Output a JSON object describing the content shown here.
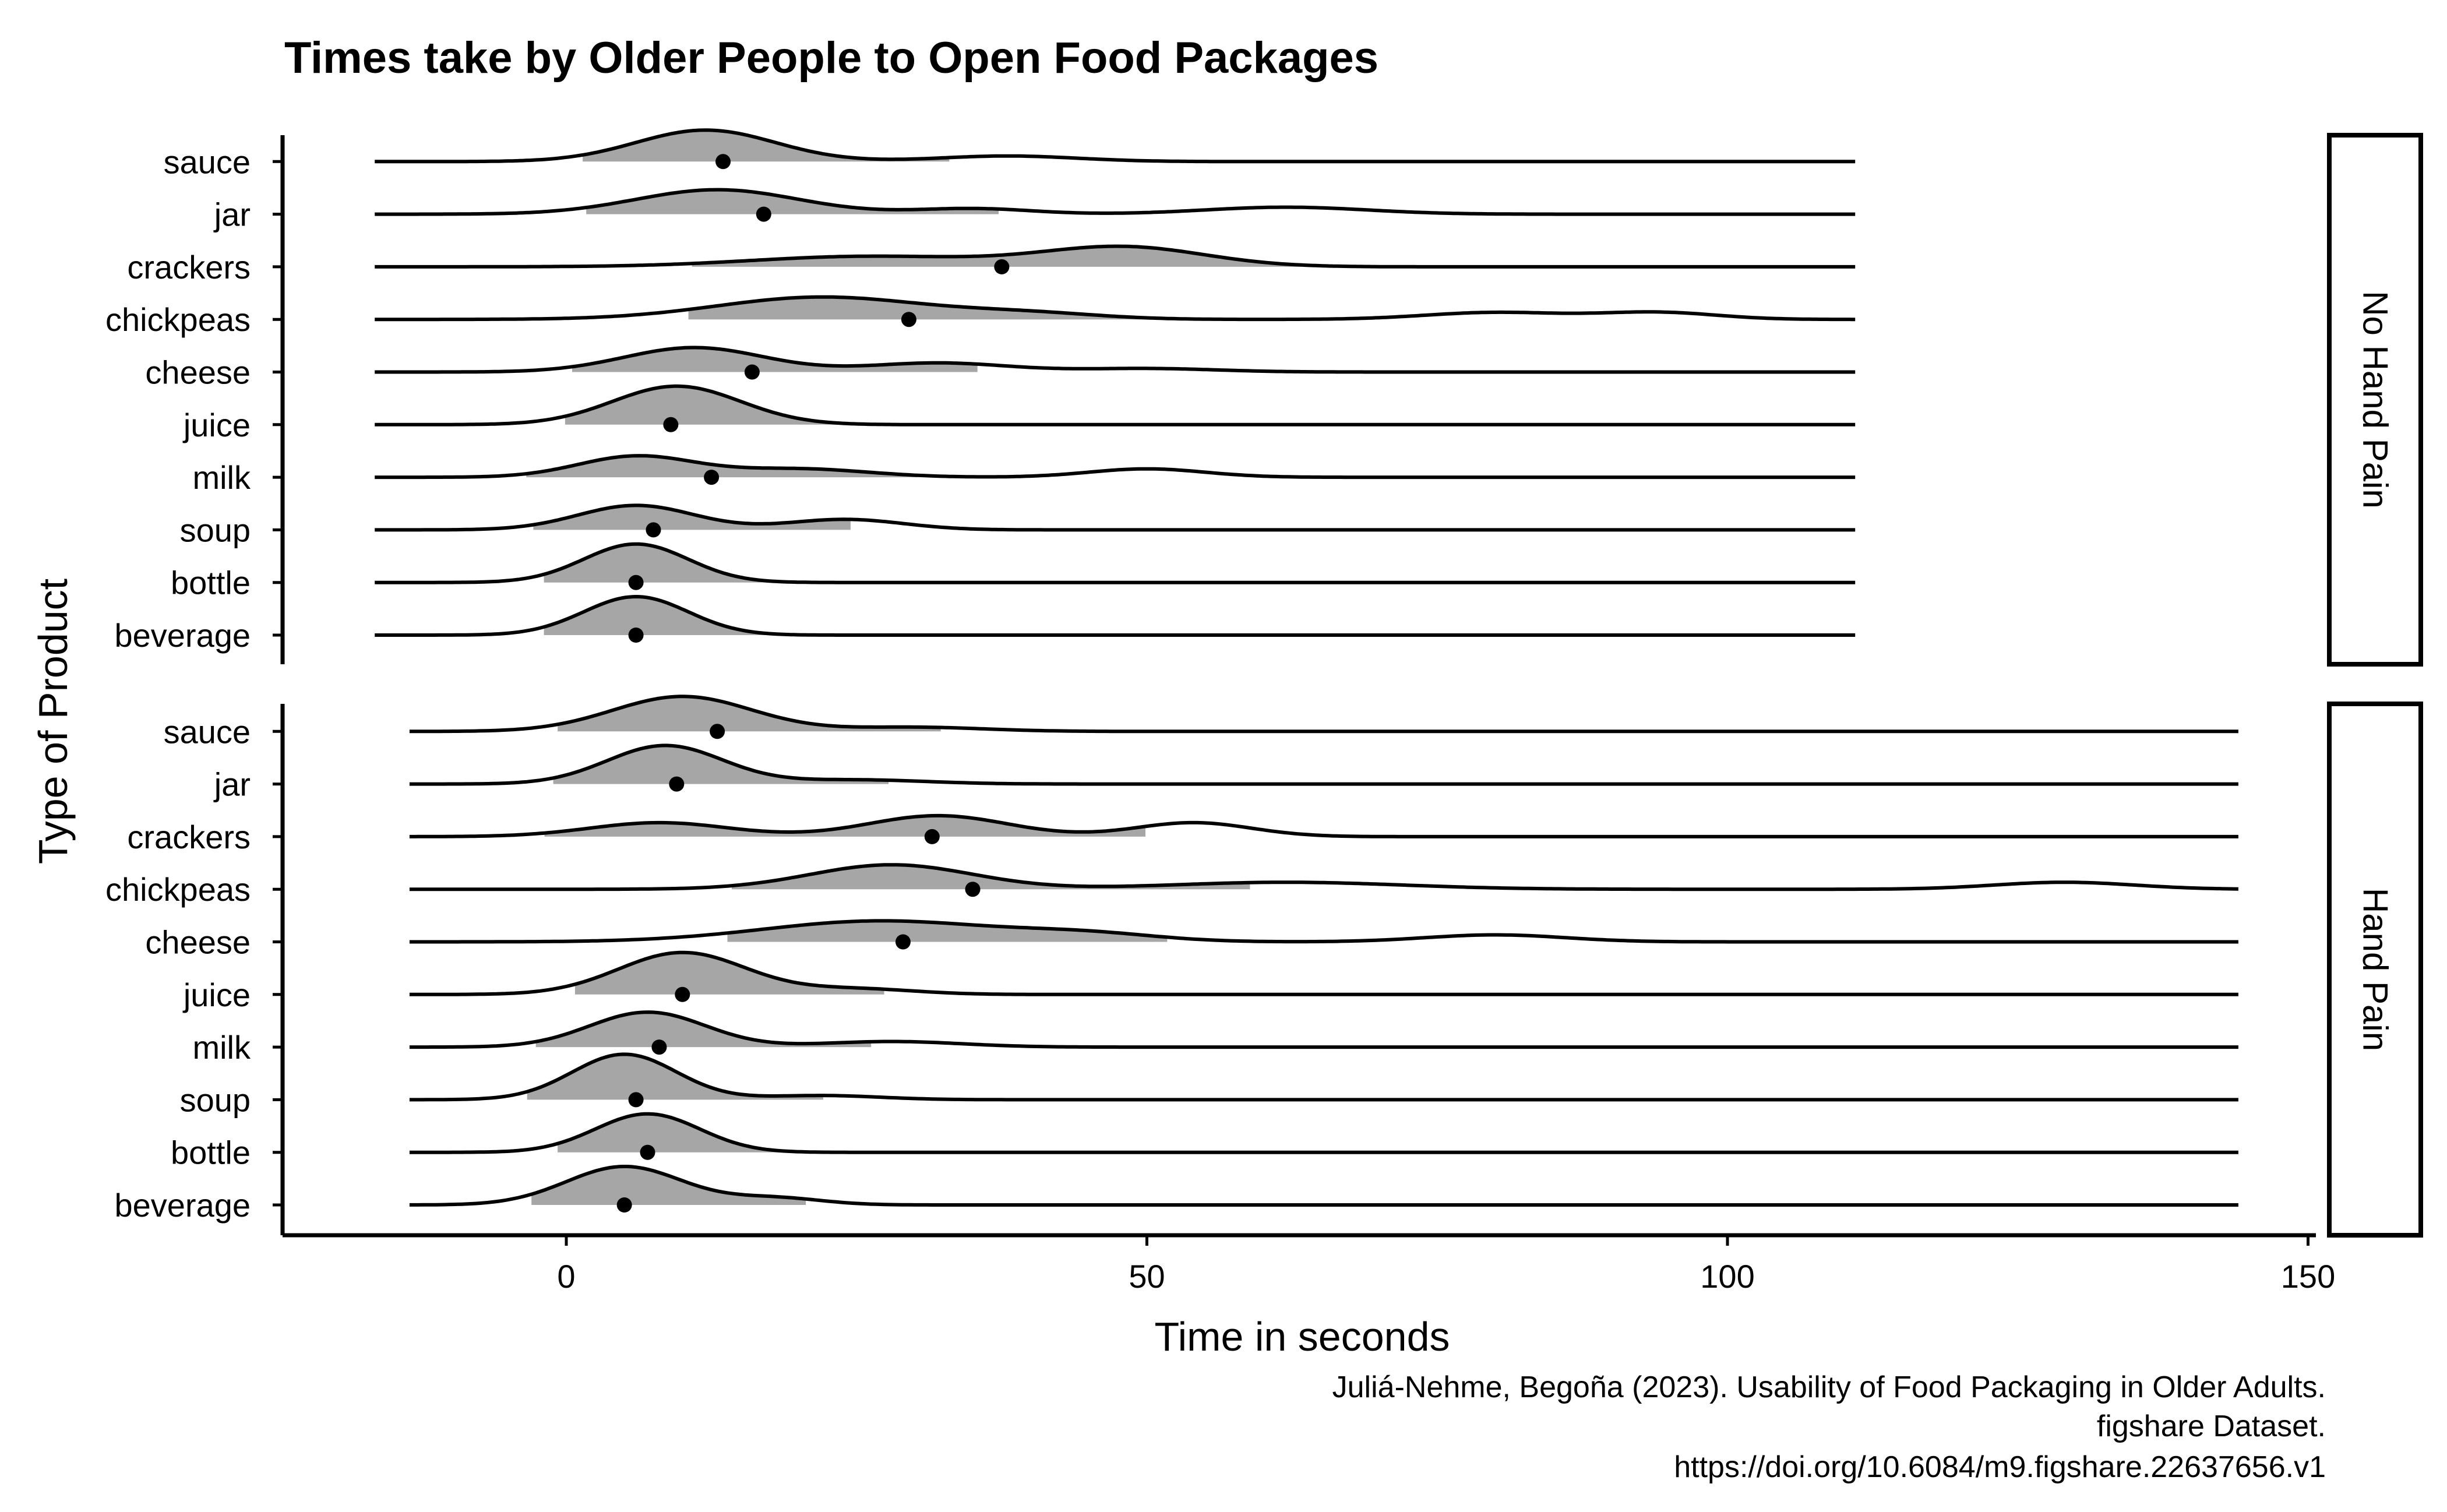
{
  "chart_data": {
    "type": "ridgeline",
    "title": "Times take by Older People to Open Food Packages",
    "xlabel": "Time in seconds",
    "ylabel": "Type of Product",
    "xlim": [
      -25,
      152
    ],
    "x_ticks": [
      0,
      50,
      100,
      150
    ],
    "grid": false,
    "categories": [
      "beverage",
      "bottle",
      "soup",
      "milk",
      "juice",
      "cheese",
      "chickpeas",
      "crackers",
      "jar",
      "sauce"
    ],
    "fill_color": "#a6a6a6",
    "line_color": "#000000",
    "point_color": "#000000",
    "caption": [
      "Juliá-Nehme, Begoña (2023). Usability of Food Packaging in Older Adults.",
      "figshare Dataset.",
      "https://doi.org/10.6084/m9.figshare.22637656.v1"
    ],
    "panels": [
      {
        "strip_label": "No Hand Pain",
        "x_range": [
          -16.5,
          111
        ],
        "ridges": [
          {
            "category": "beverage",
            "point": 6,
            "peaks": [
              [
                6,
                4.5,
                0.55
              ]
            ]
          },
          {
            "category": "bottle",
            "point": 6,
            "peaks": [
              [
                6,
                4.5,
                0.55
              ]
            ]
          },
          {
            "category": "soup",
            "point": 7.5,
            "peaks": [
              [
                6,
                5,
                0.35
              ],
              [
                24,
                5,
                0.15
              ]
            ]
          },
          {
            "category": "milk",
            "point": 12.5,
            "peaks": [
              [
                6,
                5,
                0.3
              ],
              [
                20,
                6,
                0.12
              ],
              [
                50,
                5,
                0.12
              ]
            ]
          },
          {
            "category": "juice",
            "point": 9,
            "peaks": [
              [
                9.5,
                5.5,
                0.55
              ]
            ]
          },
          {
            "category": "cheese",
            "point": 16,
            "peaks": [
              [
                11,
                6,
                0.35
              ],
              [
                32,
                6,
                0.13
              ],
              [
                50,
                6,
                0.05
              ]
            ]
          },
          {
            "category": "chickpeas",
            "point": 29.5,
            "peaks": [
              [
                22,
                9,
                0.32
              ],
              [
                40,
                6,
                0.08
              ],
              [
                80,
                6,
                0.1
              ],
              [
                94,
                5,
                0.1
              ]
            ]
          },
          {
            "category": "crackers",
            "point": 37.5,
            "peaks": [
              [
                26,
                10,
                0.15
              ],
              [
                48,
                7,
                0.28
              ]
            ]
          },
          {
            "category": "jar",
            "point": 17,
            "peaks": [
              [
                13,
                7,
                0.35
              ],
              [
                35,
                5,
                0.08
              ],
              [
                62,
                7,
                0.1
              ]
            ]
          },
          {
            "category": "sauce",
            "point": 13.5,
            "peaks": [
              [
                12,
                6,
                0.45
              ],
              [
                38,
                6,
                0.08
              ]
            ]
          }
        ]
      },
      {
        "strip_label": "Hand Pain",
        "x_range": [
          -13.5,
          144
        ],
        "ridges": [
          {
            "category": "beverage",
            "point": 5,
            "peaks": [
              [
                5,
                5,
                0.55
              ],
              [
                18,
                4,
                0.1
              ]
            ]
          },
          {
            "category": "bottle",
            "point": 7,
            "peaks": [
              [
                7,
                4.5,
                0.55
              ]
            ]
          },
          {
            "category": "soup",
            "point": 6,
            "peaks": [
              [
                5,
                4.5,
                0.65
              ],
              [
                22,
                5,
                0.06
              ]
            ]
          },
          {
            "category": "milk",
            "point": 8,
            "peaks": [
              [
                7,
                5,
                0.5
              ],
              [
                28,
                6,
                0.08
              ]
            ]
          },
          {
            "category": "juice",
            "point": 10,
            "peaks": [
              [
                10,
                5.5,
                0.6
              ],
              [
                25,
                5,
                0.08
              ]
            ]
          },
          {
            "category": "cheese",
            "point": 29,
            "peaks": [
              [
                27,
                10,
                0.3
              ],
              [
                45,
                6,
                0.1
              ],
              [
                80,
                6,
                0.1
              ]
            ]
          },
          {
            "category": "chickpeas",
            "point": 35,
            "peaks": [
              [
                28,
                7,
                0.35
              ],
              [
                62,
                10,
                0.1
              ],
              [
                129,
                6,
                0.1
              ]
            ]
          },
          {
            "category": "crackers",
            "point": 31.5,
            "peaks": [
              [
                8,
                6,
                0.2
              ],
              [
                32,
                6,
                0.3
              ],
              [
                54,
                5,
                0.2
              ]
            ]
          },
          {
            "category": "jar",
            "point": 9.5,
            "peaks": [
              [
                8.5,
                5,
                0.55
              ],
              [
                25,
                6,
                0.06
              ]
            ]
          },
          {
            "category": "sauce",
            "point": 13,
            "peaks": [
              [
                10,
                6,
                0.5
              ],
              [
                30,
                6,
                0.06
              ]
            ]
          }
        ]
      }
    ]
  }
}
